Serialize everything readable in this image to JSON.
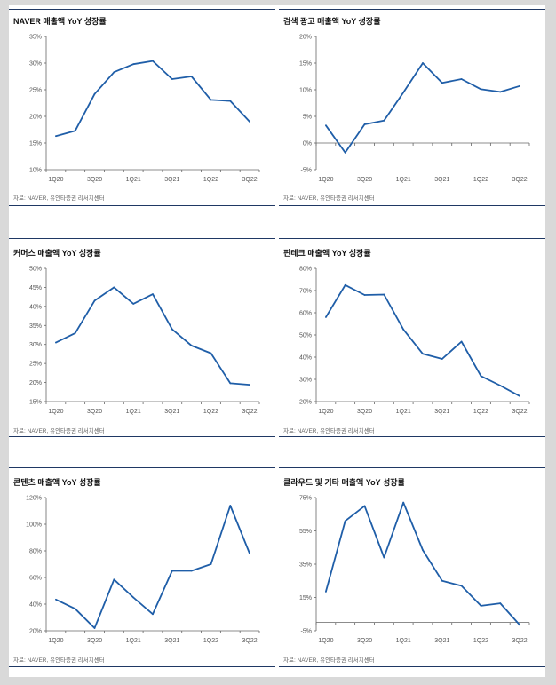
{
  "source_note": "자료: NAVER, 유안타증권 리서치센터",
  "line_color": "#1f5ea8",
  "chart_data": [
    {
      "type": "line",
      "title": "NAVER 매출액 YoY 성장률",
      "x_tick_labels": [
        "1Q20",
        "3Q20",
        "1Q21",
        "3Q21",
        "1Q22",
        "3Q22"
      ],
      "y_tick_labels": [
        "10%",
        "15%",
        "20%",
        "25%",
        "30%",
        "35%"
      ],
      "ylim": [
        10,
        35
      ],
      "baseline": null,
      "series": [
        {
          "name": "YoY",
          "values": [
            16.3,
            17.3,
            24.2,
            28.3,
            29.8,
            30.4,
            27.0,
            27.5,
            23.1,
            22.9,
            19.0
          ]
        }
      ]
    },
    {
      "type": "line",
      "title": "검색 광고 매출액 YoY 성장률",
      "x_tick_labels": [
        "1Q20",
        "3Q20",
        "1Q21",
        "3Q21",
        "1Q22",
        "3Q22"
      ],
      "y_tick_labels": [
        "-5%",
        "0%",
        "5%",
        "10%",
        "15%",
        "20%"
      ],
      "ylim": [
        -5,
        20
      ],
      "baseline": 0,
      "series": [
        {
          "name": "YoY",
          "values": [
            3.3,
            -1.8,
            3.5,
            4.2,
            9.5,
            15.0,
            11.3,
            12.0,
            10.1,
            9.6,
            10.7
          ]
        }
      ]
    },
    {
      "type": "line",
      "title": "커머스 매출액 YoY 성장률",
      "x_tick_labels": [
        "1Q20",
        "3Q20",
        "1Q21",
        "3Q21",
        "1Q22",
        "3Q22"
      ],
      "y_tick_labels": [
        "15%",
        "20%",
        "25%",
        "30%",
        "35%",
        "40%",
        "45%",
        "50%"
      ],
      "ylim": [
        15,
        50
      ],
      "baseline": null,
      "series": [
        {
          "name": "YoY",
          "values": [
            30.5,
            33.0,
            41.5,
            45.0,
            40.7,
            43.2,
            34.0,
            29.7,
            27.7,
            19.8,
            19.4
          ]
        }
      ]
    },
    {
      "type": "line",
      "title": "핀테크 매출액 YoY 성장률",
      "x_tick_labels": [
        "1Q20",
        "3Q20",
        "1Q21",
        "3Q21",
        "1Q22",
        "3Q22"
      ],
      "y_tick_labels": [
        "20%",
        "30%",
        "40%",
        "50%",
        "60%",
        "70%",
        "80%"
      ],
      "ylim": [
        20,
        80
      ],
      "baseline": null,
      "series": [
        {
          "name": "YoY",
          "values": [
            58.0,
            72.5,
            68.0,
            68.2,
            52.5,
            41.5,
            39.2,
            47.0,
            31.5,
            27.2,
            22.5
          ]
        }
      ]
    },
    {
      "type": "line",
      "title": "콘텐츠 매출액 YoY 성장률",
      "x_tick_labels": [
        "1Q20",
        "3Q20",
        "1Q21",
        "3Q21",
        "1Q22",
        "3Q22"
      ],
      "y_tick_labels": [
        "20%",
        "40%",
        "60%",
        "80%",
        "100%",
        "120%"
      ],
      "ylim": [
        20,
        120
      ],
      "baseline": null,
      "series": [
        {
          "name": "YoY",
          "values": [
            43.5,
            36.5,
            22.0,
            58.5,
            45.0,
            32.5,
            65.0,
            65.0,
            70.0,
            114.0,
            78.0
          ]
        }
      ]
    },
    {
      "type": "line",
      "title": "클라우드 및 기타 매출액 YoY 성장률",
      "x_tick_labels": [
        "1Q20",
        "3Q20",
        "1Q21",
        "3Q21",
        "1Q22",
        "3Q22"
      ],
      "y_tick_labels": [
        "-5%",
        "15%",
        "35%",
        "55%",
        "75%"
      ],
      "ylim": [
        -5,
        75
      ],
      "baseline": 0,
      "series": [
        {
          "name": "YoY",
          "values": [
            18.5,
            61.0,
            70.0,
            39.0,
            72.0,
            43.5,
            25.0,
            22.0,
            10.0,
            11.5,
            -1.5
          ]
        }
      ]
    }
  ]
}
